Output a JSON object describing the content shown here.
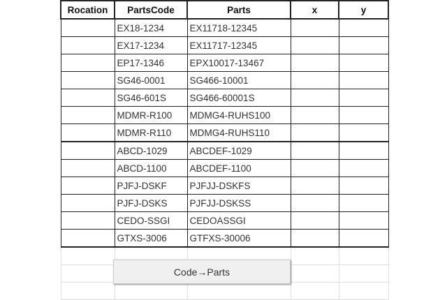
{
  "headers": [
    "Rocation",
    "PartsCode",
    "Parts",
    "x",
    "y"
  ],
  "rows": [
    {
      "code": "EX18-1234",
      "parts": "EX11718-12345"
    },
    {
      "code": "EX17-1234",
      "parts": "EX11717-12345"
    },
    {
      "code": "EP17-1346",
      "parts": "EPX10017-13467"
    },
    {
      "code": "SG46-0001",
      "parts": "SG466-10001"
    },
    {
      "code": "SG46-601S",
      "parts": "SG466-60001S"
    },
    {
      "code": "MDMR-R100",
      "parts": "MDMG4-RUHS100"
    },
    {
      "code": "MDMR-R110",
      "parts": "MDMG4-RUHS110"
    },
    {
      "code": "ABCD-1029",
      "parts": "ABCDEF-1029"
    },
    {
      "code": "ABCD-1100",
      "parts": "ABCDEF-1100"
    },
    {
      "code": "PJFJ-DSKF",
      "parts": "PJFJJ-DSKFS"
    },
    {
      "code": "PJFJ-DSKS",
      "parts": "PJFJJ-DSKSS"
    },
    {
      "code": "CEDO-SSGI",
      "parts": "CEDOASSGI"
    },
    {
      "code": "GTXS-3006",
      "parts": "GTFXS-30006"
    }
  ],
  "button": {
    "label": "Code→Parts"
  }
}
